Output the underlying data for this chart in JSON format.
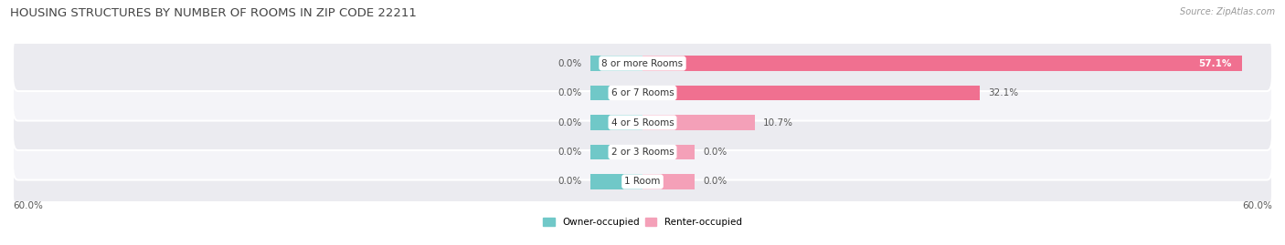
{
  "title": "HOUSING STRUCTURES BY NUMBER OF ROOMS IN ZIP CODE 22211",
  "source": "Source: ZipAtlas.com",
  "categories": [
    "1 Room",
    "2 or 3 Rooms",
    "4 or 5 Rooms",
    "6 or 7 Rooms",
    "8 or more Rooms"
  ],
  "owner_values": [
    0.0,
    0.0,
    0.0,
    0.0,
    0.0
  ],
  "renter_values": [
    0.0,
    0.0,
    10.7,
    32.1,
    57.1
  ],
  "x_min": -60.0,
  "x_max": 60.0,
  "owner_color": "#70c8c8",
  "renter_color": "#f07090",
  "renter_color_light": "#f4a0b8",
  "row_bg_color_odd": "#ebebf0",
  "row_bg_color_even": "#f4f4f8",
  "axis_label_left": "60.0%",
  "axis_label_right": "60.0%",
  "legend_owner": "Owner-occupied",
  "legend_renter": "Renter-occupied",
  "title_fontsize": 9.5,
  "source_fontsize": 7,
  "label_fontsize": 7.5,
  "bar_label_fontsize": 7.5,
  "category_fontsize": 7.5,
  "bar_height": 0.52,
  "owner_stub": 5.0,
  "renter_stub": 5.0,
  "background_color": "#ffffff"
}
